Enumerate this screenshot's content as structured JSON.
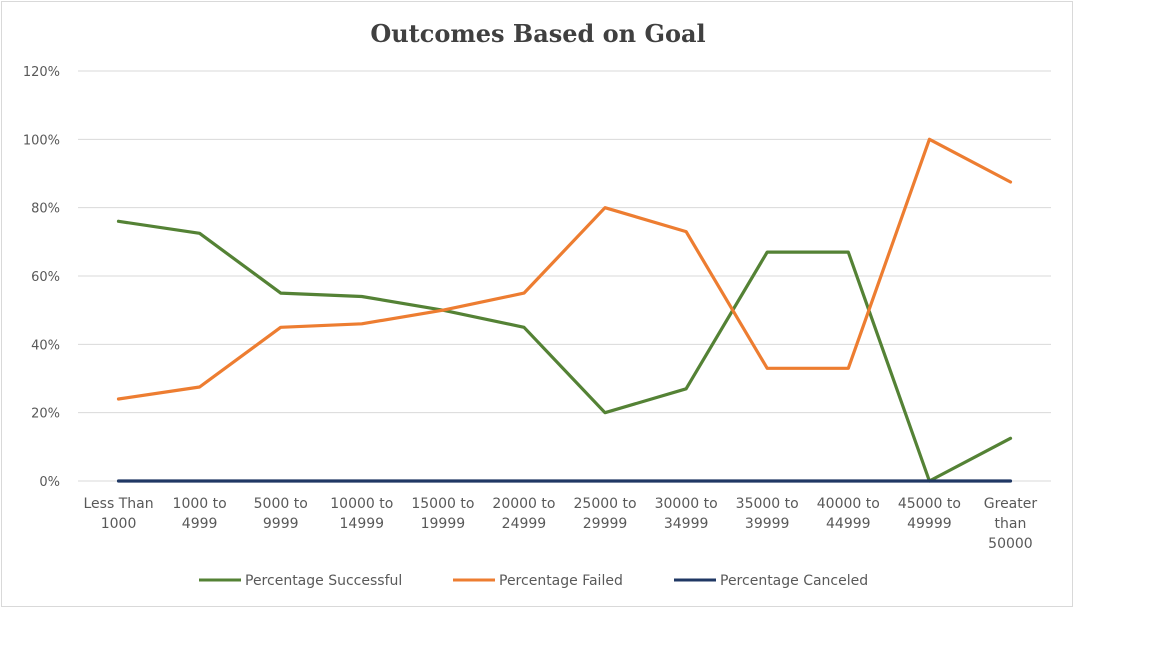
{
  "chart_data": {
    "type": "line",
    "title": "Outcomes Based on Goal",
    "xlabel": "",
    "ylabel": "",
    "categories": [
      [
        "Less Than",
        "1000"
      ],
      [
        "1000 to",
        "4999"
      ],
      [
        "5000 to",
        "9999"
      ],
      [
        "10000 to",
        "14999"
      ],
      [
        "15000 to",
        "19999"
      ],
      [
        "20000 to",
        "24999"
      ],
      [
        "25000 to",
        "29999"
      ],
      [
        "30000 to",
        "34999"
      ],
      [
        "35000 to",
        "39999"
      ],
      [
        "40000 to",
        "44999"
      ],
      [
        "45000 to",
        "49999"
      ],
      [
        "Greater",
        "than",
        "50000"
      ]
    ],
    "ylim": [
      0,
      1.2
    ],
    "yticks": [
      0,
      0.2,
      0.4,
      0.6,
      0.8,
      1.0,
      1.2
    ],
    "ytick_labels": [
      "0%",
      "20%",
      "40%",
      "60%",
      "80%",
      "100%",
      "120%"
    ],
    "grid": true,
    "legend_position": "bottom",
    "series": [
      {
        "name": "Percentage Successful",
        "color": "#548235",
        "values": [
          0.76,
          0.725,
          0.55,
          0.54,
          0.5,
          0.45,
          0.2,
          0.27,
          0.67,
          0.67,
          0.0,
          0.125
        ]
      },
      {
        "name": "Percentage Failed",
        "color": "#ed7d31",
        "values": [
          0.24,
          0.275,
          0.45,
          0.46,
          0.5,
          0.55,
          0.8,
          0.73,
          0.33,
          0.33,
          1.0,
          0.875
        ]
      },
      {
        "name": "Percentage Canceled",
        "color": "#203864",
        "values": [
          0,
          0,
          0,
          0,
          0,
          0,
          0,
          0,
          0,
          0,
          0,
          0
        ]
      }
    ]
  }
}
